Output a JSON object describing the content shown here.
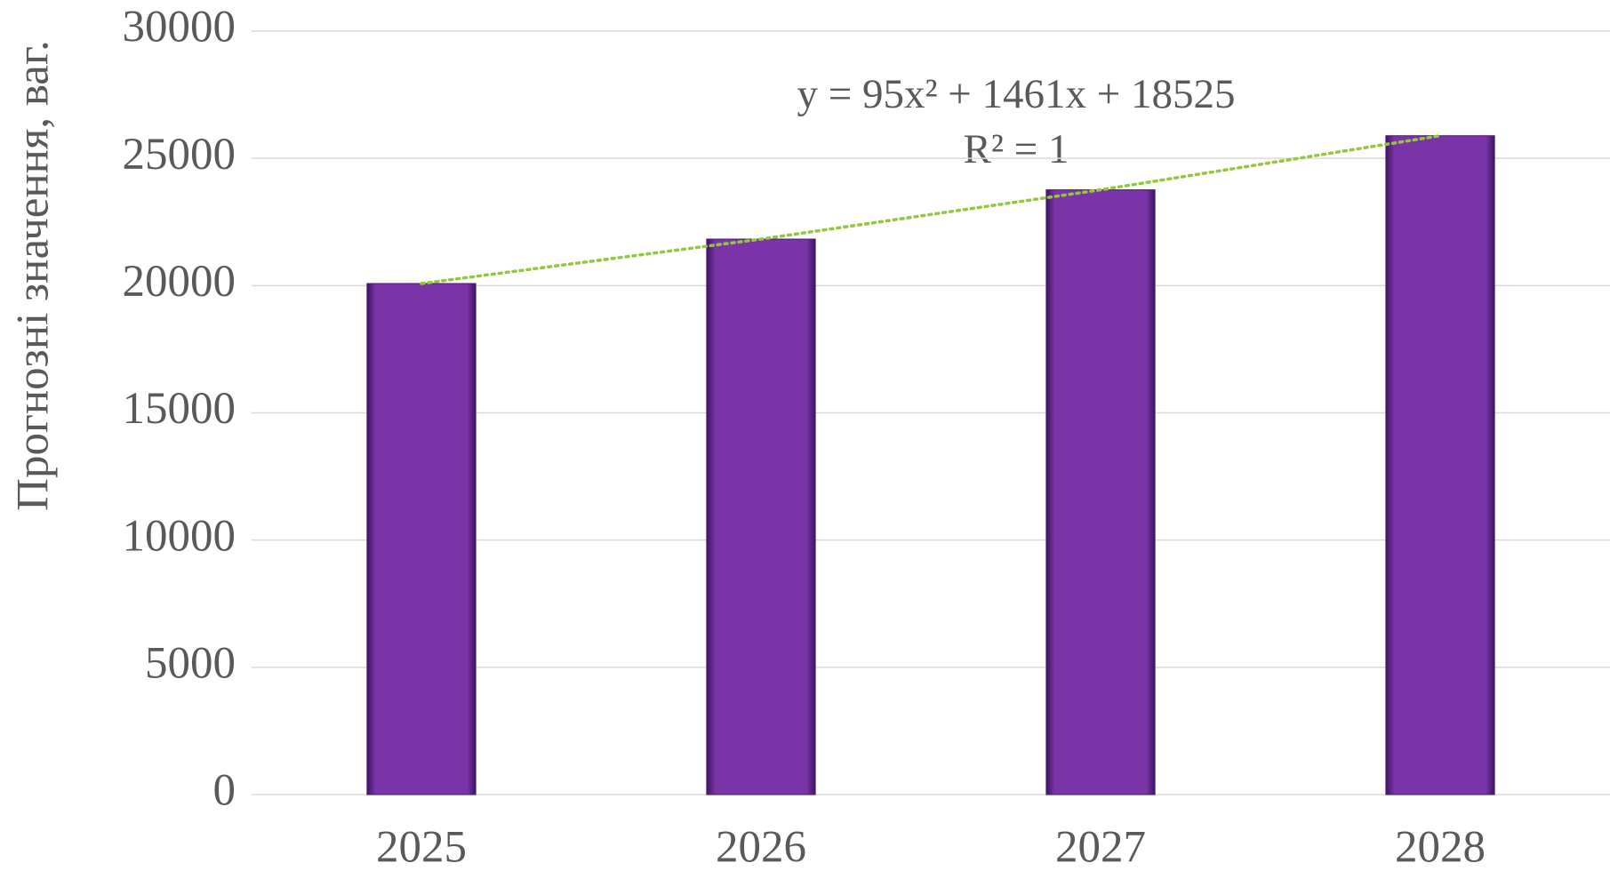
{
  "chart_data": {
    "type": "bar",
    "y_label": "Прогнозні значення, ваг.",
    "categories": [
      "2025",
      "2026",
      "2027",
      "2028"
    ],
    "values": [
      20081,
      21827,
      23763,
      25889
    ],
    "color": "#7030a0",
    "ylim": [
      0,
      30000
    ],
    "yticks": [
      0,
      5000,
      10000,
      15000,
      20000,
      25000,
      30000
    ],
    "grid": true,
    "trendline": {
      "type": "polynomial",
      "order": 2,
      "color": "#92c83e",
      "style": "dotted"
    },
    "annotations": [
      "y = 95x² + 1461x + 18525",
      "R² = 1"
    ]
  }
}
